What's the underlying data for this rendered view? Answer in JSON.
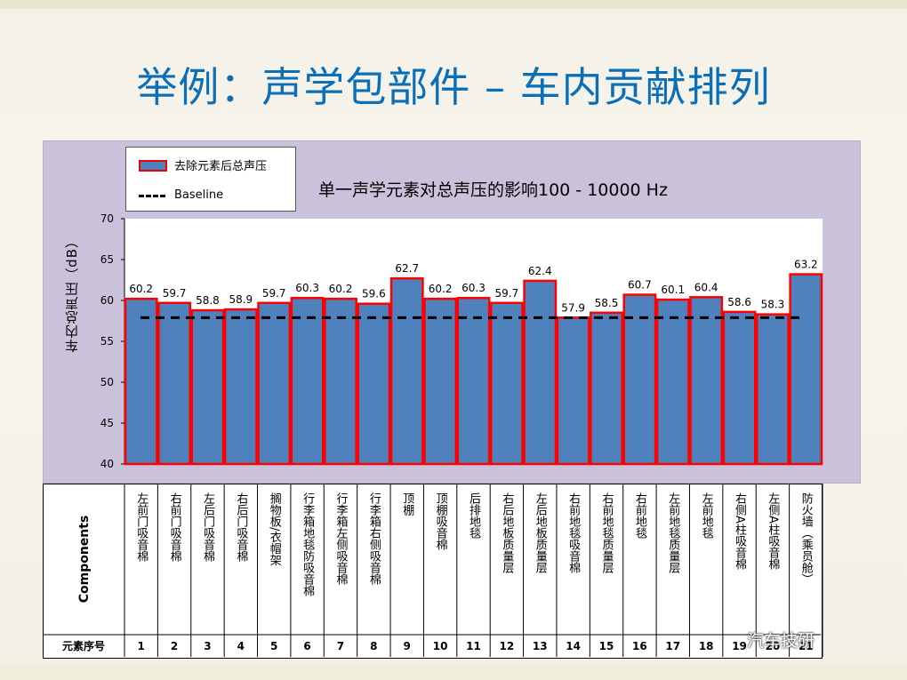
{
  "slide": {
    "title": "举例：声学包部件 – 车内贡献排列",
    "watermark": "汽车技研"
  },
  "legend": {
    "series_label": "去除元素后总声压",
    "baseline_label": "Baseline"
  },
  "table": {
    "row1_header": "Components",
    "row2_header": "元素序号"
  },
  "colors": {
    "bar_fill": "#4f81bd",
    "bar_edge": "#ff0000",
    "title": "#0b6fb8",
    "panel": "#c9c2da"
  },
  "chart_data": {
    "type": "bar",
    "title": "单一声学元素对总声压的影响100 - 10000 Hz",
    "ylabel": "车内总声压（dB）",
    "ylim": [
      40,
      70
    ],
    "yticks": [
      40,
      45,
      50,
      55,
      60,
      65,
      70
    ],
    "baseline": 57.9,
    "categories": [
      "1",
      "2",
      "3",
      "4",
      "5",
      "6",
      "7",
      "8",
      "9",
      "10",
      "11",
      "12",
      "13",
      "14",
      "15",
      "16",
      "17",
      "18",
      "19",
      "20",
      "21"
    ],
    "components": [
      "左前门吸音棉",
      "右前门吸音棉",
      "左后门吸音棉",
      "右后门吸音棉",
      "搁物板/衣帽架",
      "行李箱地毯防吸音棉",
      "行李箱左侧吸音棉",
      "行李箱右侧吸音棉",
      "顶棚",
      "顶棚吸音棉",
      "后排地毯",
      "右后地板质量层",
      "左后地板质量层",
      "右前地毯吸音棉",
      "右前地毯质量层",
      "右前地毯",
      "左前地毯质量层",
      "左前地毯",
      "右侧A柱吸音棉",
      "左侧A柱吸音棉",
      "防火墙（乘员舱）"
    ],
    "series": [
      {
        "name": "去除元素后总声压",
        "values": [
          60.2,
          59.7,
          58.8,
          58.9,
          59.7,
          60.3,
          60.2,
          59.6,
          62.7,
          60.2,
          60.3,
          59.7,
          62.4,
          57.9,
          58.5,
          60.7,
          60.1,
          60.4,
          58.6,
          58.3,
          63.2
        ]
      }
    ],
    "value_labels": [
      "60.2",
      "59.7",
      "58.8",
      "58.9",
      "59.7",
      "60.3",
      "60.2",
      "59.6",
      "62.7",
      "60.2",
      "60.3",
      "59.7",
      "62.4",
      "57.9",
      "58.5",
      "60.7",
      "60.1",
      "60.4",
      "58.6",
      "58.3",
      "63.2"
    ],
    "grid": false,
    "legend_position": "top-left"
  }
}
